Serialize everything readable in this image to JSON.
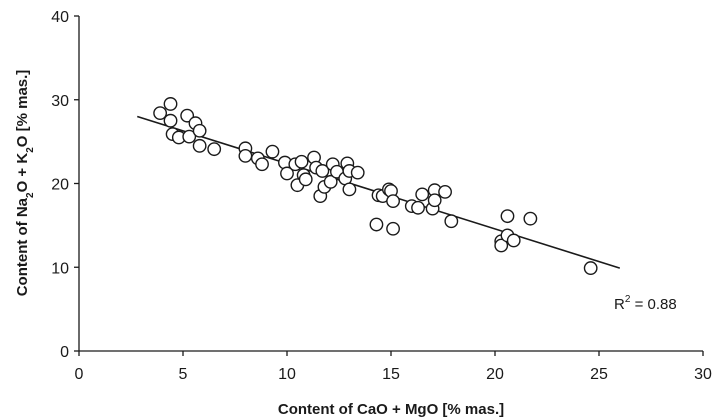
{
  "chart_data": {
    "type": "scatter",
    "xlabel_parts": [
      "Content of CaO + MgO  [% mas.]"
    ],
    "ylabel_parts": [
      {
        "t": "Content of Na",
        "sub": false
      },
      {
        "t": "2",
        "sub": true
      },
      {
        "t": "O + K",
        "sub": false
      },
      {
        "t": "2",
        "sub": true
      },
      {
        "t": "O [% mas.]",
        "sub": false
      }
    ],
    "xlim": [
      0,
      30
    ],
    "ylim": [
      0,
      40
    ],
    "x_ticks": [
      0,
      5,
      10,
      15,
      20,
      25,
      30
    ],
    "y_ticks": [
      0,
      10,
      20,
      30,
      40
    ],
    "grid": false,
    "trendline": {
      "x": [
        2.8,
        26.0
      ],
      "y": [
        28.0,
        9.9
      ]
    },
    "annotation": {
      "r_base": "R",
      "r_exp": "2",
      "r_value": " = 0.88"
    },
    "points": [
      {
        "x": 3.9,
        "y": 28.4
      },
      {
        "x": 4.4,
        "y": 29.5
      },
      {
        "x": 4.4,
        "y": 27.5
      },
      {
        "x": 4.5,
        "y": 25.9
      },
      {
        "x": 4.8,
        "y": 25.5
      },
      {
        "x": 5.2,
        "y": 28.1
      },
      {
        "x": 5.3,
        "y": 25.6
      },
      {
        "x": 5.6,
        "y": 27.2
      },
      {
        "x": 5.8,
        "y": 26.3
      },
      {
        "x": 5.8,
        "y": 24.5
      },
      {
        "x": 6.5,
        "y": 24.1
      },
      {
        "x": 8.0,
        "y": 24.2
      },
      {
        "x": 8.0,
        "y": 23.3
      },
      {
        "x": 8.6,
        "y": 23.0
      },
      {
        "x": 8.8,
        "y": 22.3
      },
      {
        "x": 9.3,
        "y": 23.8
      },
      {
        "x": 9.9,
        "y": 22.5
      },
      {
        "x": 10.0,
        "y": 21.2
      },
      {
        "x": 10.4,
        "y": 22.3
      },
      {
        "x": 10.5,
        "y": 19.8
      },
      {
        "x": 10.7,
        "y": 22.6
      },
      {
        "x": 10.8,
        "y": 21.0
      },
      {
        "x": 10.9,
        "y": 20.5
      },
      {
        "x": 11.3,
        "y": 23.1
      },
      {
        "x": 11.4,
        "y": 21.9
      },
      {
        "x": 11.6,
        "y": 18.5
      },
      {
        "x": 11.7,
        "y": 21.5
      },
      {
        "x": 11.8,
        "y": 19.6
      },
      {
        "x": 12.1,
        "y": 20.2
      },
      {
        "x": 12.2,
        "y": 22.3
      },
      {
        "x": 12.4,
        "y": 21.4
      },
      {
        "x": 12.8,
        "y": 20.6
      },
      {
        "x": 12.9,
        "y": 22.4
      },
      {
        "x": 13.0,
        "y": 21.5
      },
      {
        "x": 13.0,
        "y": 19.3
      },
      {
        "x": 13.4,
        "y": 21.3
      },
      {
        "x": 14.3,
        "y": 15.1
      },
      {
        "x": 14.4,
        "y": 18.6
      },
      {
        "x": 14.6,
        "y": 18.5
      },
      {
        "x": 14.9,
        "y": 19.3
      },
      {
        "x": 15.0,
        "y": 19.1
      },
      {
        "x": 15.1,
        "y": 17.9
      },
      {
        "x": 15.1,
        "y": 14.6
      },
      {
        "x": 16.0,
        "y": 17.3
      },
      {
        "x": 16.3,
        "y": 17.1
      },
      {
        "x": 16.5,
        "y": 18.7
      },
      {
        "x": 17.0,
        "y": 17.0
      },
      {
        "x": 17.1,
        "y": 19.2
      },
      {
        "x": 17.1,
        "y": 18.0
      },
      {
        "x": 17.6,
        "y": 19.0
      },
      {
        "x": 17.9,
        "y": 15.5
      },
      {
        "x": 20.3,
        "y": 13.1
      },
      {
        "x": 20.3,
        "y": 12.6
      },
      {
        "x": 20.6,
        "y": 16.1
      },
      {
        "x": 20.6,
        "y": 13.8
      },
      {
        "x": 20.9,
        "y": 13.2
      },
      {
        "x": 21.7,
        "y": 15.8
      },
      {
        "x": 24.6,
        "y": 9.9
      }
    ]
  }
}
